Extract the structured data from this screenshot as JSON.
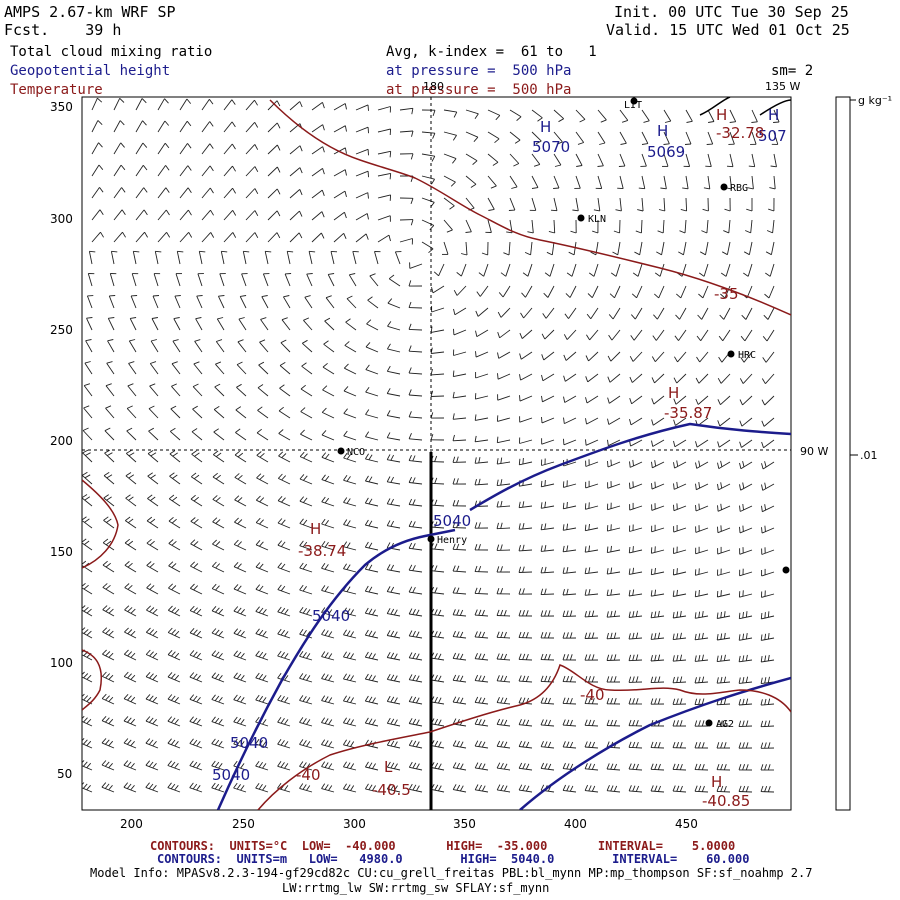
{
  "header": {
    "model": "AMPS 2.67-km WRF SP",
    "fcst": "Fcst.    39 h",
    "init": "Init. 00 UTC Tue 30 Sep 25",
    "valid": "Valid. 15 UTC Wed 01 Oct 25",
    "field1": "Total cloud mixing ratio",
    "field1_info": "Avg, k-index =  61 to   1",
    "field2": "Geopotential height",
    "field2_info": "at pressure =  500 hPa",
    "field3": "Temperature",
    "field3_info": "at pressure =  500 hPa",
    "sm": "sm= 2"
  },
  "colorbar": {
    "units": "g kg⁻¹",
    "tick_label": ".01"
  },
  "axes": {
    "x_ticks": [
      "200",
      "250",
      "300",
      "350",
      "400",
      "450"
    ],
    "y_ticks": [
      "350",
      "300",
      "250",
      "200",
      "150",
      "100",
      "50"
    ],
    "meridian_180": "180",
    "meridian_135": "135 W",
    "meridian_90": "90 W"
  },
  "stations": [
    {
      "id": "LIT",
      "label": "LIT"
    },
    {
      "id": "RBG",
      "label": "RBG"
    },
    {
      "id": "KLN",
      "label": "KLN"
    },
    {
      "id": "HRC",
      "label": "HRC"
    },
    {
      "id": "NCO",
      "label": "NCO"
    },
    {
      "id": "Henry",
      "label": "Henry"
    },
    {
      "id": "AG2",
      "label": "AG2"
    }
  ],
  "map_labels": {
    "h1": "H",
    "h1_val": "5070",
    "h2": "H",
    "h2_val": "5069",
    "h3": "H",
    "h3_val": "-32.78",
    "h3b": "H",
    "h3b_val": "507",
    "t35": "-35",
    "h4": "H",
    "h4_val": "-35.87",
    "h5": "H",
    "h5_val": "-38.74",
    "g5040a": "5040",
    "g5040b": "5040",
    "g5040c": "5040",
    "g5040d": "5040",
    "t40a": "-40",
    "t40b": "-40",
    "l1": "L",
    "l1_val": "-40.5",
    "h6": "H",
    "h6_val": "-40.85"
  },
  "footer": {
    "line1": "CONTOURS:  UNITS=°C  LOW=  -40.000       HIGH=  -35.000       INTERVAL=    5.0000",
    "line2": "CONTOURS:  UNITS=m   LOW=   4980.0        HIGH=  5040.0        INTERVAL=    60.000",
    "line3": "Model Info: MPASv8.2.3-194-gf29cd82c CU:cu_grell_freitas PBL:bl_mynn MP:mp_thompson SF:sf_noahmp 2.7",
    "line4": "LW:rrtmg_lw SW:rrtmg_sw SFLAY:sf_mynn"
  },
  "colors": {
    "geopotential": "#1c1c8c",
    "temperature": "#8b1a1a",
    "text": "#000000"
  }
}
